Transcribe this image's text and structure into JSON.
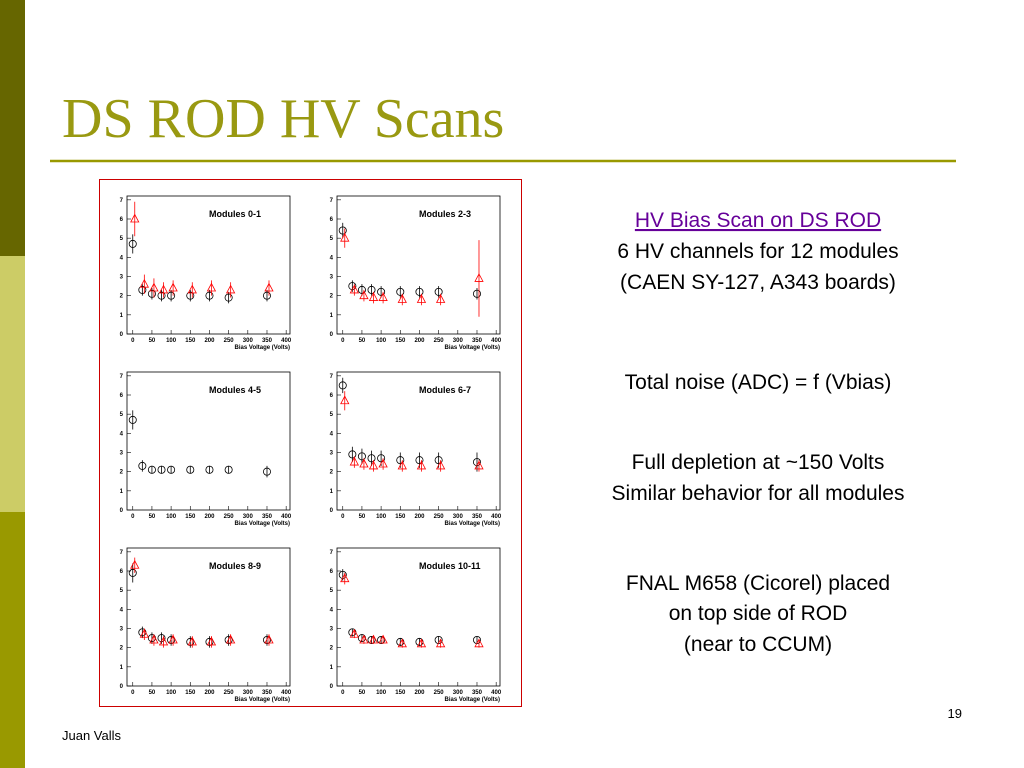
{
  "title": "DS ROD HV Scans",
  "text_blocks": [
    [
      "HV Bias Scan on DS ROD",
      "6 HV channels for 12 modules",
      "(CAEN SY-127, A343 boards)"
    ],
    [
      "Total noise (ADC) = f (Vbias)"
    ],
    [
      "Full depletion at ~150 Volts",
      "Similar behavior for all modules"
    ],
    [
      "FNAL M658 (Cicorel) placed",
      "on top side of ROD",
      "(near to CCUM)"
    ]
  ],
  "footer": {
    "author": "Juan Valls",
    "page_number": "19"
  },
  "chart_data": [
    {
      "type": "scatter",
      "title": "Modules 0-1",
      "x_label": "Bias Voltage (Volts)",
      "x": [
        0,
        25,
        50,
        75,
        100,
        150,
        200,
        250,
        350
      ],
      "xlim": [
        -15,
        410
      ],
      "xticks": [
        0,
        50,
        100,
        150,
        200,
        250,
        300,
        350,
        400
      ],
      "ylim": [
        0,
        7.2
      ],
      "yticks": [
        0,
        1,
        2,
        3,
        4,
        5,
        6,
        7
      ],
      "series": [
        {
          "color": "#000000",
          "marker": "circle",
          "values": [
            4.7,
            2.3,
            2.1,
            2.0,
            2.0,
            2.0,
            2.0,
            1.9,
            2.0
          ],
          "errors": [
            0.5,
            0.3,
            0.3,
            0.3,
            0.3,
            0.3,
            0.3,
            0.3,
            0.3
          ]
        },
        {
          "color": "#ff0000",
          "marker": "triangle",
          "values": [
            6.0,
            2.6,
            2.4,
            2.3,
            2.4,
            2.3,
            2.4,
            2.3,
            2.4
          ],
          "errors": [
            0.9,
            0.5,
            0.5,
            0.4,
            0.4,
            0.4,
            0.4,
            0.4,
            0.4
          ]
        }
      ]
    },
    {
      "type": "scatter",
      "title": "Modules 2-3",
      "x_label": "Bias Voltage (Volts)",
      "x": [
        0,
        25,
        50,
        75,
        100,
        150,
        200,
        250,
        350
      ],
      "xlim": [
        -15,
        410
      ],
      "xticks": [
        0,
        50,
        100,
        150,
        200,
        250,
        300,
        350,
        400
      ],
      "ylim": [
        0,
        7.2
      ],
      "yticks": [
        0,
        1,
        2,
        3,
        4,
        5,
        6,
        7
      ],
      "series": [
        {
          "color": "#000000",
          "marker": "circle",
          "values": [
            5.4,
            2.5,
            2.3,
            2.3,
            2.2,
            2.2,
            2.2,
            2.2,
            2.1
          ],
          "errors": [
            0.4,
            0.3,
            0.3,
            0.3,
            0.3,
            0.3,
            0.3,
            0.3,
            0.3
          ]
        },
        {
          "color": "#ff0000",
          "marker": "triangle",
          "values": [
            5.0,
            2.3,
            2.0,
            1.9,
            1.9,
            1.8,
            1.8,
            1.8,
            2.9
          ],
          "errors": [
            0.5,
            0.3,
            0.3,
            0.3,
            0.3,
            0.3,
            0.3,
            0.3,
            2.0
          ]
        }
      ]
    },
    {
      "type": "scatter",
      "title": "Modules 4-5",
      "x_label": "Bias Voltage (Volts)",
      "x": [
        0,
        25,
        50,
        75,
        100,
        150,
        200,
        250,
        350
      ],
      "xlim": [
        -15,
        410
      ],
      "xticks": [
        0,
        50,
        100,
        150,
        200,
        250,
        300,
        350,
        400
      ],
      "ylim": [
        0,
        7.2
      ],
      "yticks": [
        0,
        1,
        2,
        3,
        4,
        5,
        6,
        7
      ],
      "series": [
        {
          "color": "#000000",
          "marker": "circle",
          "values": [
            4.7,
            2.3,
            2.1,
            2.1,
            2.1,
            2.1,
            2.1,
            2.1,
            2.0
          ],
          "errors": [
            0.5,
            0.3,
            0.2,
            0.2,
            0.2,
            0.2,
            0.2,
            0.2,
            0.3
          ]
        }
      ]
    },
    {
      "type": "scatter",
      "title": "Modules 6-7",
      "x_label": "Bias Voltage (Volts)",
      "x": [
        0,
        25,
        50,
        75,
        100,
        150,
        200,
        250,
        350
      ],
      "xlim": [
        -15,
        410
      ],
      "xticks": [
        0,
        50,
        100,
        150,
        200,
        250,
        300,
        350,
        400
      ],
      "ylim": [
        0,
        7.2
      ],
      "yticks": [
        0,
        1,
        2,
        3,
        4,
        5,
        6,
        7
      ],
      "series": [
        {
          "color": "#000000",
          "marker": "circle",
          "values": [
            6.5,
            2.9,
            2.8,
            2.7,
            2.7,
            2.6,
            2.6,
            2.6,
            2.5
          ],
          "errors": [
            0.4,
            0.4,
            0.4,
            0.4,
            0.4,
            0.4,
            0.4,
            0.4,
            0.5
          ]
        },
        {
          "color": "#ff0000",
          "marker": "triangle",
          "values": [
            5.7,
            2.5,
            2.4,
            2.3,
            2.4,
            2.3,
            2.3,
            2.3,
            2.3
          ],
          "errors": [
            0.5,
            0.3,
            0.3,
            0.3,
            0.3,
            0.3,
            0.3,
            0.3,
            0.3
          ]
        }
      ]
    },
    {
      "type": "scatter",
      "title": "Modules 8-9",
      "x_label": "Bias Voltage (Volts)",
      "x": [
        0,
        25,
        50,
        75,
        100,
        150,
        200,
        250,
        350
      ],
      "xlim": [
        -15,
        410
      ],
      "xticks": [
        0,
        50,
        100,
        150,
        200,
        250,
        300,
        350,
        400
      ],
      "ylim": [
        0,
        7.2
      ],
      "yticks": [
        0,
        1,
        2,
        3,
        4,
        5,
        6,
        7
      ],
      "series": [
        {
          "color": "#000000",
          "marker": "circle",
          "values": [
            5.9,
            2.8,
            2.5,
            2.5,
            2.4,
            2.3,
            2.3,
            2.4,
            2.4
          ],
          "errors": [
            0.5,
            0.3,
            0.3,
            0.3,
            0.3,
            0.3,
            0.3,
            0.3,
            0.3
          ]
        },
        {
          "color": "#ff0000",
          "marker": "triangle",
          "values": [
            6.3,
            2.7,
            2.4,
            2.3,
            2.4,
            2.3,
            2.3,
            2.4,
            2.4
          ],
          "errors": [
            0.4,
            0.3,
            0.3,
            0.3,
            0.3,
            0.3,
            0.3,
            0.3,
            0.3
          ]
        }
      ]
    },
    {
      "type": "scatter",
      "title": "Modules 10-11",
      "x_label": "Bias Voltage (Volts)",
      "x": [
        0,
        25,
        50,
        75,
        100,
        150,
        200,
        250,
        350
      ],
      "xlim": [
        -15,
        410
      ],
      "xticks": [
        0,
        50,
        100,
        150,
        200,
        250,
        300,
        350,
        400
      ],
      "ylim": [
        0,
        7.2
      ],
      "yticks": [
        0,
        1,
        2,
        3,
        4,
        5,
        6,
        7
      ],
      "series": [
        {
          "color": "#000000",
          "marker": "circle",
          "values": [
            5.8,
            2.8,
            2.5,
            2.4,
            2.4,
            2.3,
            2.3,
            2.4,
            2.4
          ],
          "errors": [
            0.3,
            0.2,
            0.2,
            0.2,
            0.2,
            0.2,
            0.2,
            0.2,
            0.2
          ]
        },
        {
          "color": "#ff0000",
          "marker": "triangle",
          "values": [
            5.6,
            2.7,
            2.4,
            2.4,
            2.4,
            2.2,
            2.2,
            2.2,
            2.2
          ],
          "errors": [
            0.3,
            0.2,
            0.2,
            0.2,
            0.2,
            0.2,
            0.2,
            0.2,
            0.2
          ]
        }
      ]
    }
  ]
}
